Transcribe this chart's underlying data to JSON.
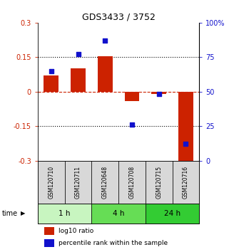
{
  "title": "GDS3433 / 3752",
  "samples": [
    "GSM120710",
    "GSM120711",
    "GSM120648",
    "GSM120708",
    "GSM120715",
    "GSM120716"
  ],
  "groups": [
    {
      "label": "1 h",
      "color_light": "#d8f5d0",
      "color_dark": "#44dd44",
      "span": [
        0,
        1
      ]
    },
    {
      "label": "4 h",
      "color_light": "#88e878",
      "color_dark": "#44dd44",
      "span": [
        2,
        3
      ]
    },
    {
      "label": "24 h",
      "color_light": "#44dd44",
      "color_dark": "#44dd44",
      "span": [
        4,
        5
      ]
    }
  ],
  "group_colors": [
    "#c8f5c0",
    "#66dd55",
    "#33cc33"
  ],
  "log10_ratio": [
    0.07,
    0.1,
    0.155,
    -0.04,
    -0.01,
    -0.305
  ],
  "percentile_rank": [
    65,
    77,
    87,
    26,
    48.5,
    12
  ],
  "ylim_left": [
    -0.3,
    0.3
  ],
  "ylim_right": [
    0,
    100
  ],
  "yticks_left": [
    -0.3,
    -0.15,
    0,
    0.15,
    0.3
  ],
  "ytick_labels_left": [
    "-0.3",
    "-0.15",
    "0",
    "0.15",
    "0.3"
  ],
  "yticks_right": [
    0,
    25,
    50,
    75,
    100
  ],
  "ytick_labels_right": [
    "0",
    "25",
    "50",
    "75",
    "100%"
  ],
  "hlines": [
    -0.15,
    0.15
  ],
  "zero_line": 0,
  "bar_color": "#cc2200",
  "dot_color": "#1111cc",
  "label_log10": "log10 ratio",
  "label_percentile": "percentile rank within the sample",
  "time_label": "time",
  "bar_width": 0.55,
  "dot_size": 18
}
